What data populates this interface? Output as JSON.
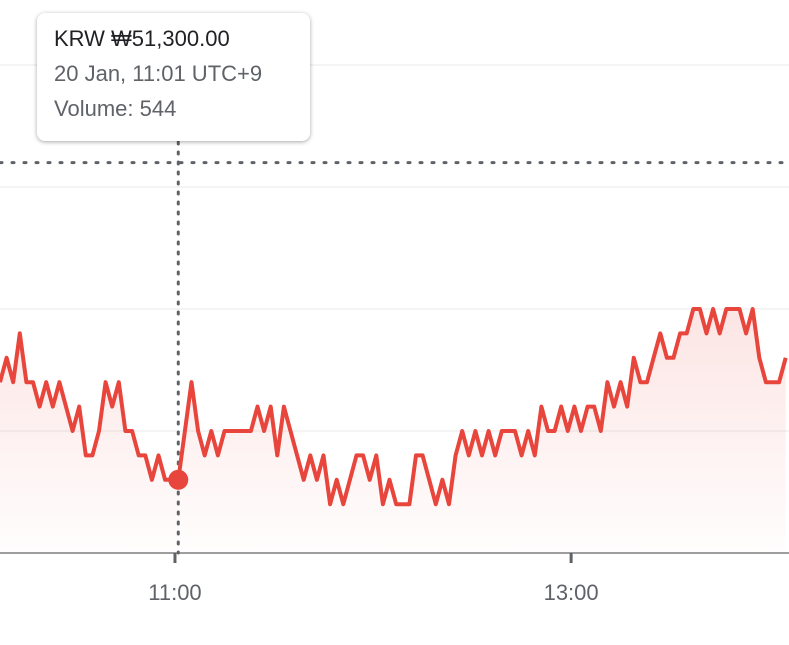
{
  "chart_data": {
    "type": "line",
    "x": [
      607,
      609,
      611,
      613,
      615,
      617,
      619,
      621,
      623,
      625,
      627,
      629,
      631,
      633,
      635,
      637,
      639,
      641,
      643,
      645,
      647,
      649,
      651,
      653,
      655,
      657,
      659,
      661,
      663,
      665,
      667,
      669,
      671,
      673,
      675,
      677,
      679,
      681,
      683,
      685,
      687,
      689,
      691,
      693,
      695,
      697,
      699,
      701,
      703,
      705,
      707,
      709,
      711,
      713,
      715,
      717,
      719,
      721,
      723,
      725,
      727,
      729,
      731,
      733,
      735,
      737,
      739,
      741,
      743,
      745,
      747,
      749,
      751,
      753,
      755,
      757,
      759,
      761,
      763,
      765,
      767,
      769,
      771,
      773,
      775,
      777,
      779,
      781,
      783,
      785,
      787,
      789,
      791,
      793,
      795,
      797,
      799,
      801,
      803,
      805,
      807,
      809,
      811,
      813,
      815,
      817,
      819,
      821,
      823,
      825,
      827,
      829,
      831,
      833,
      835,
      837,
      839,
      841,
      843,
      845
    ],
    "series": [
      {
        "color": "#e8453c",
        "values": [
          51700,
          51800,
          51700,
          51900,
          51700,
          51700,
          51600,
          51700,
          51600,
          51700,
          51600,
          51500,
          51600,
          51400,
          51400,
          51500,
          51700,
          51600,
          51700,
          51500,
          51500,
          51400,
          51400,
          51300,
          51400,
          51300,
          51300,
          51300,
          51500,
          51700,
          51500,
          51400,
          51500,
          51400,
          51500,
          51500,
          51500,
          51500,
          51500,
          51600,
          51500,
          51600,
          51400,
          51600,
          51500,
          51400,
          51300,
          51400,
          51300,
          51400,
          51200,
          51300,
          51200,
          51300,
          51400,
          51400,
          51300,
          51400,
          51200,
          51300,
          51200,
          51200,
          51200,
          51400,
          51400,
          51300,
          51200,
          51300,
          51200,
          51400,
          51500,
          51400,
          51500,
          51400,
          51500,
          51400,
          51500,
          51500,
          51500,
          51400,
          51500,
          51400,
          51600,
          51500,
          51500,
          51600,
          51500,
          51600,
          51500,
          51600,
          51600,
          51500,
          51700,
          51600,
          51700,
          51600,
          51800,
          51700,
          51700,
          51800,
          51900,
          51800,
          51800,
          51900,
          51900,
          52000,
          52000,
          51900,
          52000,
          51900,
          52000,
          52000,
          52000,
          51900,
          52000,
          51800,
          51700,
          51700,
          51700,
          51800
        ]
      }
    ],
    "xlim": [
      607,
      846
    ],
    "xticks": [
      {
        "value": 660,
        "label": "11:00"
      },
      {
        "value": 780,
        "label": "13:00"
      }
    ],
    "ylim": [
      51000,
      53000
    ],
    "yticks": [
      51000,
      51500,
      52000,
      52500,
      53000
    ],
    "grid": true,
    "reference_line": 52600,
    "highlight_index": 27,
    "tooltip": {
      "price": "KRW ₩51,300.00",
      "time": "20 Jan, 11:01 UTC+9",
      "volume": "Volume: 544"
    }
  }
}
